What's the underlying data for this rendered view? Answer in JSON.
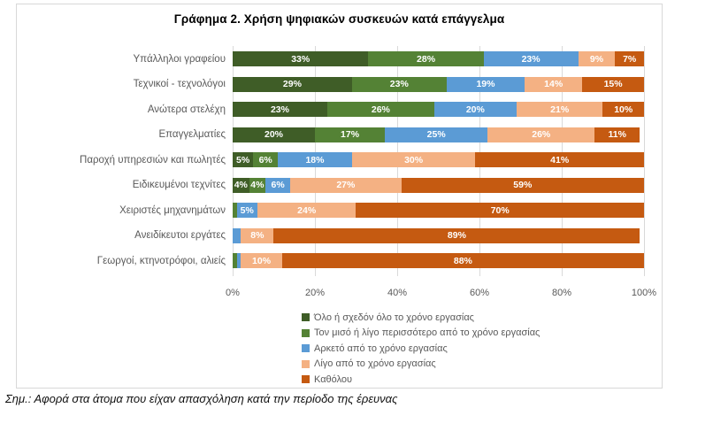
{
  "chart_data": {
    "type": "bar",
    "orientation": "horizontal-stacked",
    "title": "Γράφημα 2. Χρήση ψηφιακών συσκευών κατά επάγγελμα",
    "categories": [
      "Υπάλληλοι γραφείου",
      "Τεχνικοί - τεχνολόγοι",
      "Ανώτερα στελέχη",
      "Επαγγελματίες",
      "Παροχή υπηρεσιών και πωλητές",
      "Ειδικευμένοι τεχνίτες",
      "Χειριστές μηχανημάτων",
      "Ανειδίκευτοι εργάτες",
      "Γεωργοί, κτηνοτρόφοι, αλιείς"
    ],
    "series": [
      {
        "name": "Όλο ή σχεδόν όλο το χρόνο εργασίας",
        "color": "#3F5D27",
        "values": [
          33,
          29,
          23,
          20,
          5,
          4,
          0,
          0,
          0
        ]
      },
      {
        "name": "Τον μισό ή λίγο περισσότερο από το χρόνο εργασίας",
        "color": "#548235",
        "values": [
          28,
          23,
          26,
          17,
          6,
          4,
          1,
          0,
          1
        ]
      },
      {
        "name": "Αρκετό από το χρόνο εργασίας",
        "color": "#5B9BD5",
        "values": [
          23,
          19,
          20,
          25,
          18,
          6,
          5,
          2,
          1
        ]
      },
      {
        "name": "Λίγο από το χρόνο εργασίας",
        "color": "#F4B183",
        "values": [
          9,
          14,
          21,
          26,
          30,
          27,
          24,
          8,
          10
        ]
      },
      {
        "name": "Καθόλου",
        "color": "#C55A11",
        "values": [
          7,
          15,
          10,
          11,
          41,
          59,
          70,
          89,
          88
        ]
      }
    ],
    "x_ticks": [
      "0%",
      "20%",
      "40%",
      "60%",
      "80%",
      "100%"
    ],
    "xlim": [
      0,
      100
    ],
    "value_suffix": "%",
    "label_min_value": 4,
    "legend_position": "bottom-left",
    "grid": "vertical"
  },
  "footnote": "Σημ.: Αφορά στα άτομα που είχαν απασχόληση κατά την περίοδο της έρευνας",
  "colors": {
    "grid": "#D9D9D9",
    "axis_text": "#595959",
    "border": "#D8D8D8",
    "bar_label": "#FFFFFF",
    "background": "#FFFFFF"
  }
}
